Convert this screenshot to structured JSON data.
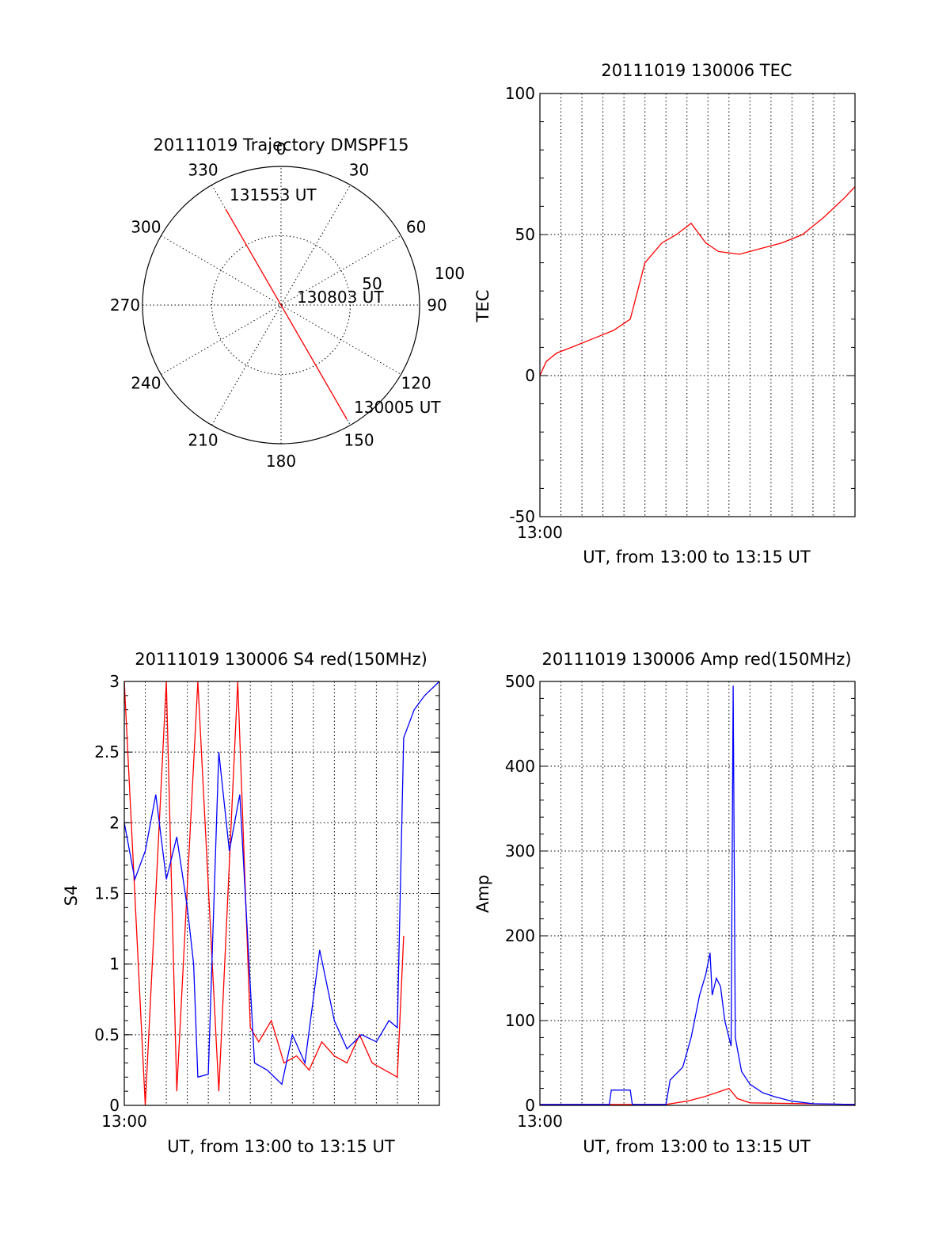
{
  "colors": {
    "red": "#ff0000",
    "blue": "#0000ff",
    "axis": "#000000"
  },
  "chart_data": [
    {
      "type": "polar",
      "title": "20111019 Trajectory DMSPF15",
      "angle_labels": [
        "0",
        "30",
        "60",
        "90",
        "120",
        "150",
        "180",
        "210",
        "240",
        "270",
        "300",
        "330"
      ],
      "radial_labels": [
        "50",
        "100"
      ],
      "rlim": [
        0,
        100
      ],
      "series": [
        {
          "color": "#ff0000",
          "points": [
            {
              "az": 150,
              "r": 95
            },
            {
              "az": 330,
              "r": 80
            }
          ]
        }
      ],
      "annotations": [
        {
          "label": "131553 UT",
          "az": 330,
          "r": 80
        },
        {
          "label": "130803 UT",
          "az": 90,
          "r": 2
        },
        {
          "label": "130005 UT",
          "az": 150,
          "r": 95
        }
      ]
    },
    {
      "type": "line",
      "title": "20111019 130006 TEC",
      "xlabel": "UT, from 13:00 to 13:15 UT",
      "ylabel": "TEC",
      "xtick_labels": [
        "13:00"
      ],
      "yticks": [
        "100",
        "50",
        "0",
        "-50"
      ],
      "xlim": [
        0,
        15
      ],
      "ylim": [
        -50,
        100
      ],
      "series": [
        {
          "color": "#ff0000",
          "x": [
            0,
            0.3,
            0.8,
            1.5,
            2.5,
            3.5,
            4.3,
            5.0,
            5.8,
            6.5,
            7.2,
            7.9,
            8.5,
            9.5,
            10.5,
            11.5,
            12.5,
            13.5,
            14.5,
            15.0
          ],
          "y": [
            0,
            5,
            8,
            10,
            13,
            16,
            20,
            40,
            47,
            50,
            54,
            47,
            44,
            43,
            45,
            47,
            50,
            56,
            63,
            67
          ]
        }
      ]
    },
    {
      "type": "line",
      "title": "20111019 130006 S4 red(150MHz)",
      "xlabel": "UT, from 13:00 to 13:15 UT",
      "ylabel": "S4",
      "xtick_labels": [
        "13:00"
      ],
      "yticks": [
        "3",
        "2.5",
        "2",
        "1.5",
        "1",
        "0.5",
        "0"
      ],
      "xlim": [
        0,
        15
      ],
      "ylim": [
        0,
        3
      ],
      "series": [
        {
          "color": "#ff0000",
          "x": [
            0,
            1,
            2,
            2.5,
            3.5,
            4.5,
            5.4,
            6.0,
            6.4,
            7.0,
            7.6,
            8.2,
            8.8,
            9.4,
            10.0,
            10.6,
            11.2,
            11.8,
            12.4,
            13.0,
            13.3
          ],
          "y": [
            3,
            0,
            3,
            0.1,
            3,
            0.1,
            3,
            0.55,
            0.45,
            0.6,
            0.3,
            0.35,
            0.25,
            0.45,
            0.35,
            0.3,
            0.5,
            0.3,
            0.25,
            0.2,
            1.2
          ]
        },
        {
          "color": "#0000ff",
          "x": [
            0,
            0.5,
            1.0,
            1.5,
            2.0,
            2.5,
            3.0,
            3.3,
            3.5,
            4.0,
            4.5,
            5.0,
            5.5,
            6.2,
            6.8,
            7.5,
            8.0,
            8.6,
            9.3,
            10.0,
            10.6,
            11.3,
            12.0,
            12.6,
            13.0,
            13.3,
            13.8,
            14.3,
            15.0
          ],
          "y": [
            2.0,
            1.6,
            1.8,
            2.2,
            1.6,
            1.9,
            1.4,
            1.0,
            0.2,
            0.22,
            2.5,
            1.8,
            2.2,
            0.3,
            0.25,
            0.15,
            0.5,
            0.3,
            1.1,
            0.6,
            0.4,
            0.5,
            0.45,
            0.6,
            0.55,
            2.6,
            2.8,
            2.9,
            3.0
          ]
        }
      ]
    },
    {
      "type": "line",
      "title": "20111019 130006 Amp red(150MHz)",
      "xlabel": "UT, from 13:00 to 13:15 UT",
      "ylabel": "Amp",
      "xtick_labels": [
        "13:00"
      ],
      "yticks": [
        "500",
        "400",
        "300",
        "200",
        "100",
        "0"
      ],
      "xlim": [
        0,
        15
      ],
      "ylim": [
        0,
        500
      ],
      "series": [
        {
          "color": "#ff0000",
          "x": [
            0,
            3,
            6.0,
            7.0,
            7.8,
            8.4,
            9.0,
            9.4,
            10.0,
            15.0
          ],
          "y": [
            1,
            1,
            1,
            5,
            10,
            15,
            20,
            8,
            3,
            1
          ]
        },
        {
          "color": "#0000ff",
          "x": [
            0,
            3.3,
            3.4,
            4.3,
            4.4,
            5.0,
            6.0,
            6.2,
            6.8,
            7.2,
            7.6,
            7.9,
            8.1,
            8.2,
            8.4,
            8.6,
            8.8,
            9.1,
            9.2,
            9.3,
            9.6,
            10.0,
            10.6,
            11.2,
            12.0,
            13.0,
            15.0
          ],
          "y": [
            1,
            1,
            18,
            18,
            1,
            1,
            1,
            30,
            45,
            80,
            130,
            155,
            180,
            130,
            150,
            140,
            100,
            70,
            495,
            80,
            40,
            25,
            15,
            10,
            5,
            2,
            1
          ]
        }
      ]
    }
  ]
}
